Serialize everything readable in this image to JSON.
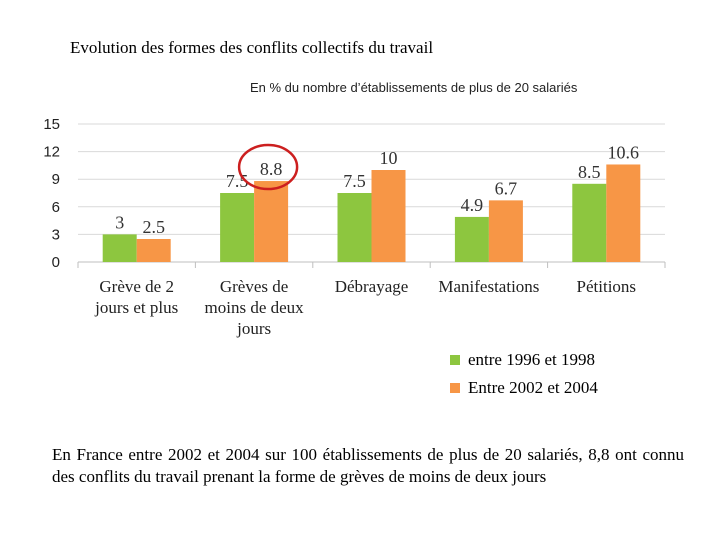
{
  "title": "Evolution des formes des conflits collectifs du travail",
  "chart_data": {
    "type": "bar",
    "title": "Evolution des formes des conflits collectifs du travail",
    "subtitle": "En % du nombre d’établissements de plus de 20 salariés",
    "categories": [
      [
        "Grève de 2",
        "jours et plus"
      ],
      [
        "Grèves de",
        "moins de deux",
        "jours"
      ],
      [
        "Débrayage"
      ],
      [
        "Manifestations"
      ],
      [
        "Pétitions"
      ]
    ],
    "series": [
      {
        "name": "entre 1996 et 1998",
        "color": "#8dc63f",
        "values": [
          3,
          7.5,
          7.5,
          4.9,
          8.5
        ],
        "labels": [
          "3",
          "7.5",
          "7.5",
          "4.9",
          "8.5"
        ]
      },
      {
        "name": "Entre 2002 et 2004",
        "color": "#f79646",
        "values": [
          2.5,
          8.8,
          10,
          6.7,
          10.6
        ],
        "labels": [
          "2.5",
          "8.8",
          "10",
          "6.7",
          "10.6"
        ]
      }
    ],
    "yticks": [
      0,
      3,
      6,
      9,
      12,
      15
    ],
    "ylim": [
      0,
      15
    ],
    "grid": true,
    "legend_position": "bottom-right",
    "highlight": {
      "series": 1,
      "category": 1,
      "color": "#cc1f1f"
    }
  },
  "caption": "En France entre 2002 et 2004 sur 100 établissements de plus de 20 salariés, 8,8 ont connu des conflits du travail prenant la forme de grèves de moins de deux jours"
}
